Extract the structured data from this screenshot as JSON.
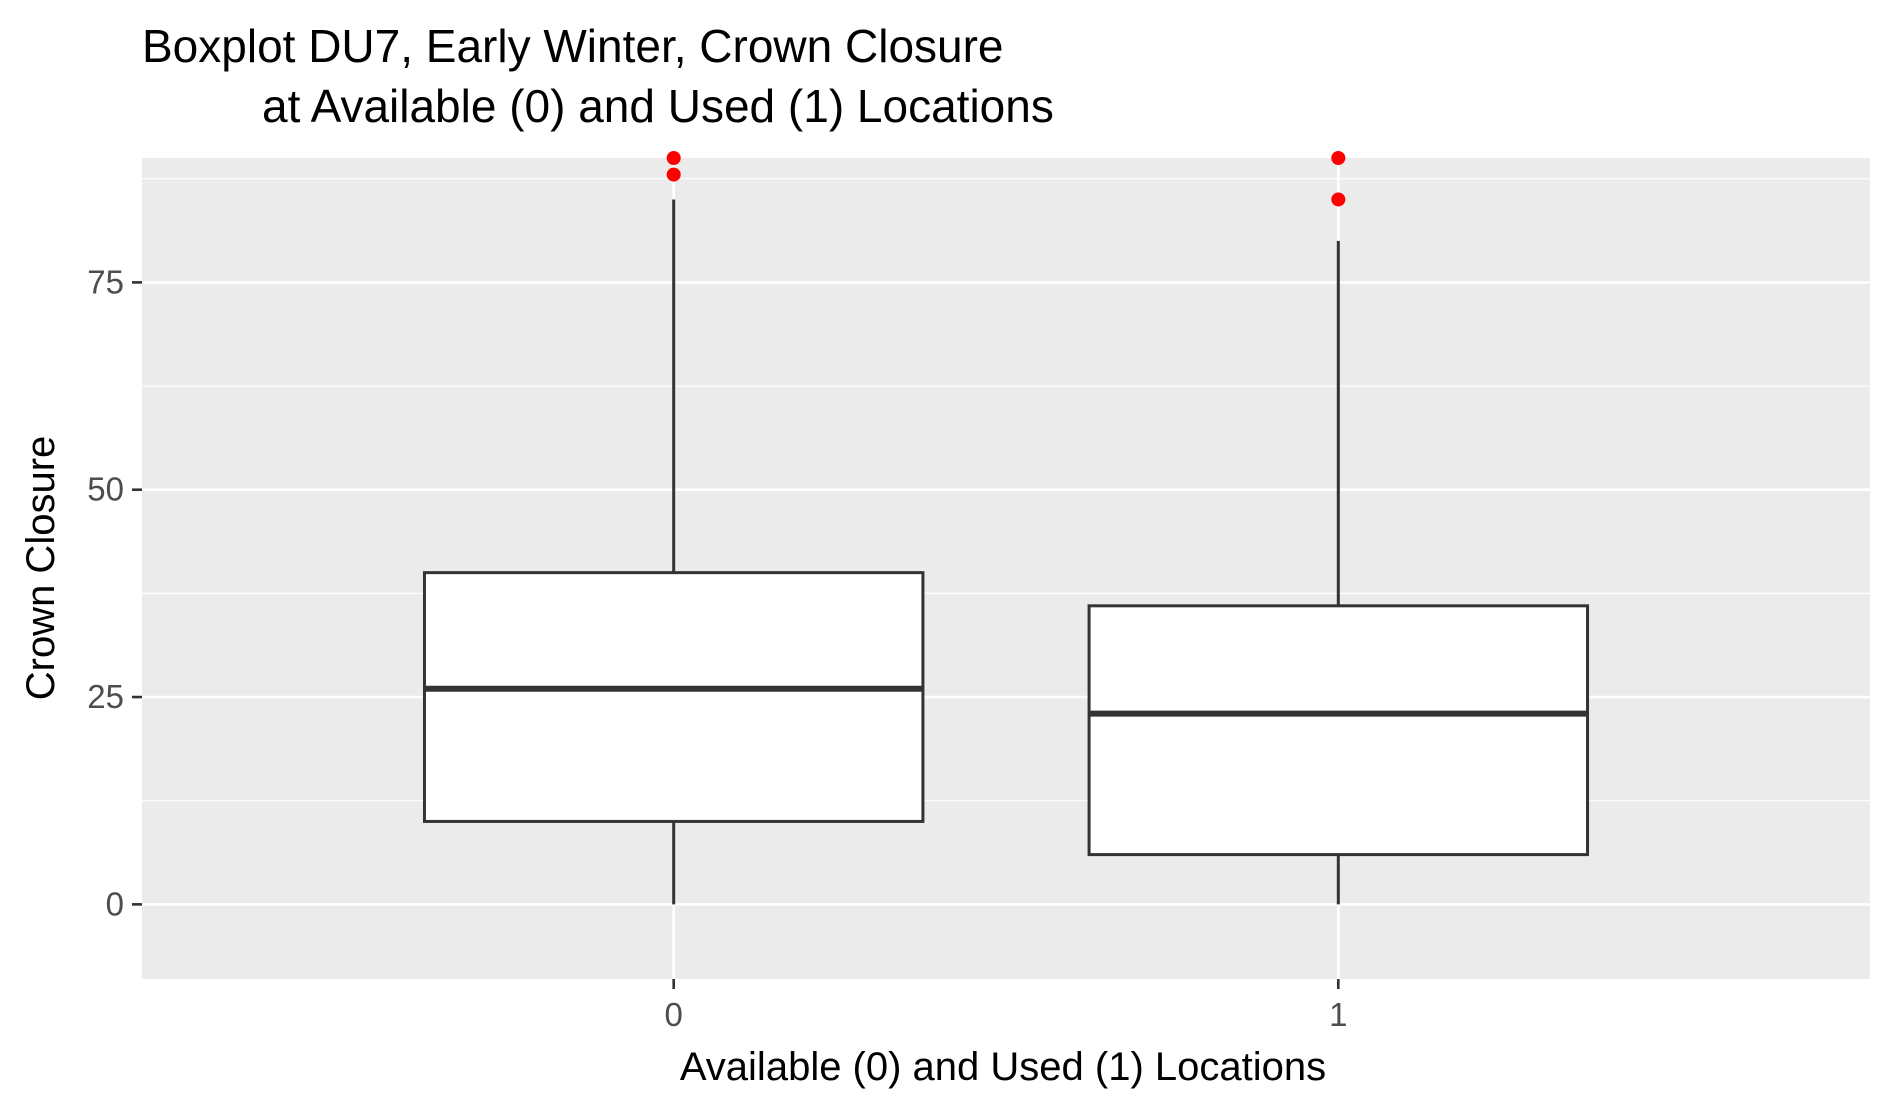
{
  "chart_data": {
    "type": "box",
    "title_lines": [
      "Boxplot DU7, Early Winter, Crown Closure",
      "at Available (0) and Used (1) Locations"
    ],
    "xlabel": "Available (0) and Used (1) Locations",
    "ylabel": "Crown Closure",
    "ylim": [
      -9,
      90
    ],
    "yticks": [
      0,
      25,
      50,
      75
    ],
    "ytick_labels": [
      "0",
      "25",
      "50",
      "75"
    ],
    "categories": [
      "0",
      "1"
    ],
    "boxes": [
      {
        "category": "0",
        "whisker_low": 0,
        "q1": 10,
        "median": 26,
        "q3": 40,
        "whisker_high": 85,
        "outliers": [
          88,
          90
        ]
      },
      {
        "category": "1",
        "whisker_low": 0,
        "q1": 6,
        "median": 23,
        "q3": 36,
        "whisker_high": 80,
        "outliers": [
          85,
          90
        ]
      }
    ],
    "grid": true,
    "legend": "none",
    "colors": {
      "panel_bg": "#ebebeb",
      "grid": "#ffffff",
      "box_fill": "#ffffff",
      "box_line": "#333333",
      "outlier": "#ff0000"
    }
  }
}
